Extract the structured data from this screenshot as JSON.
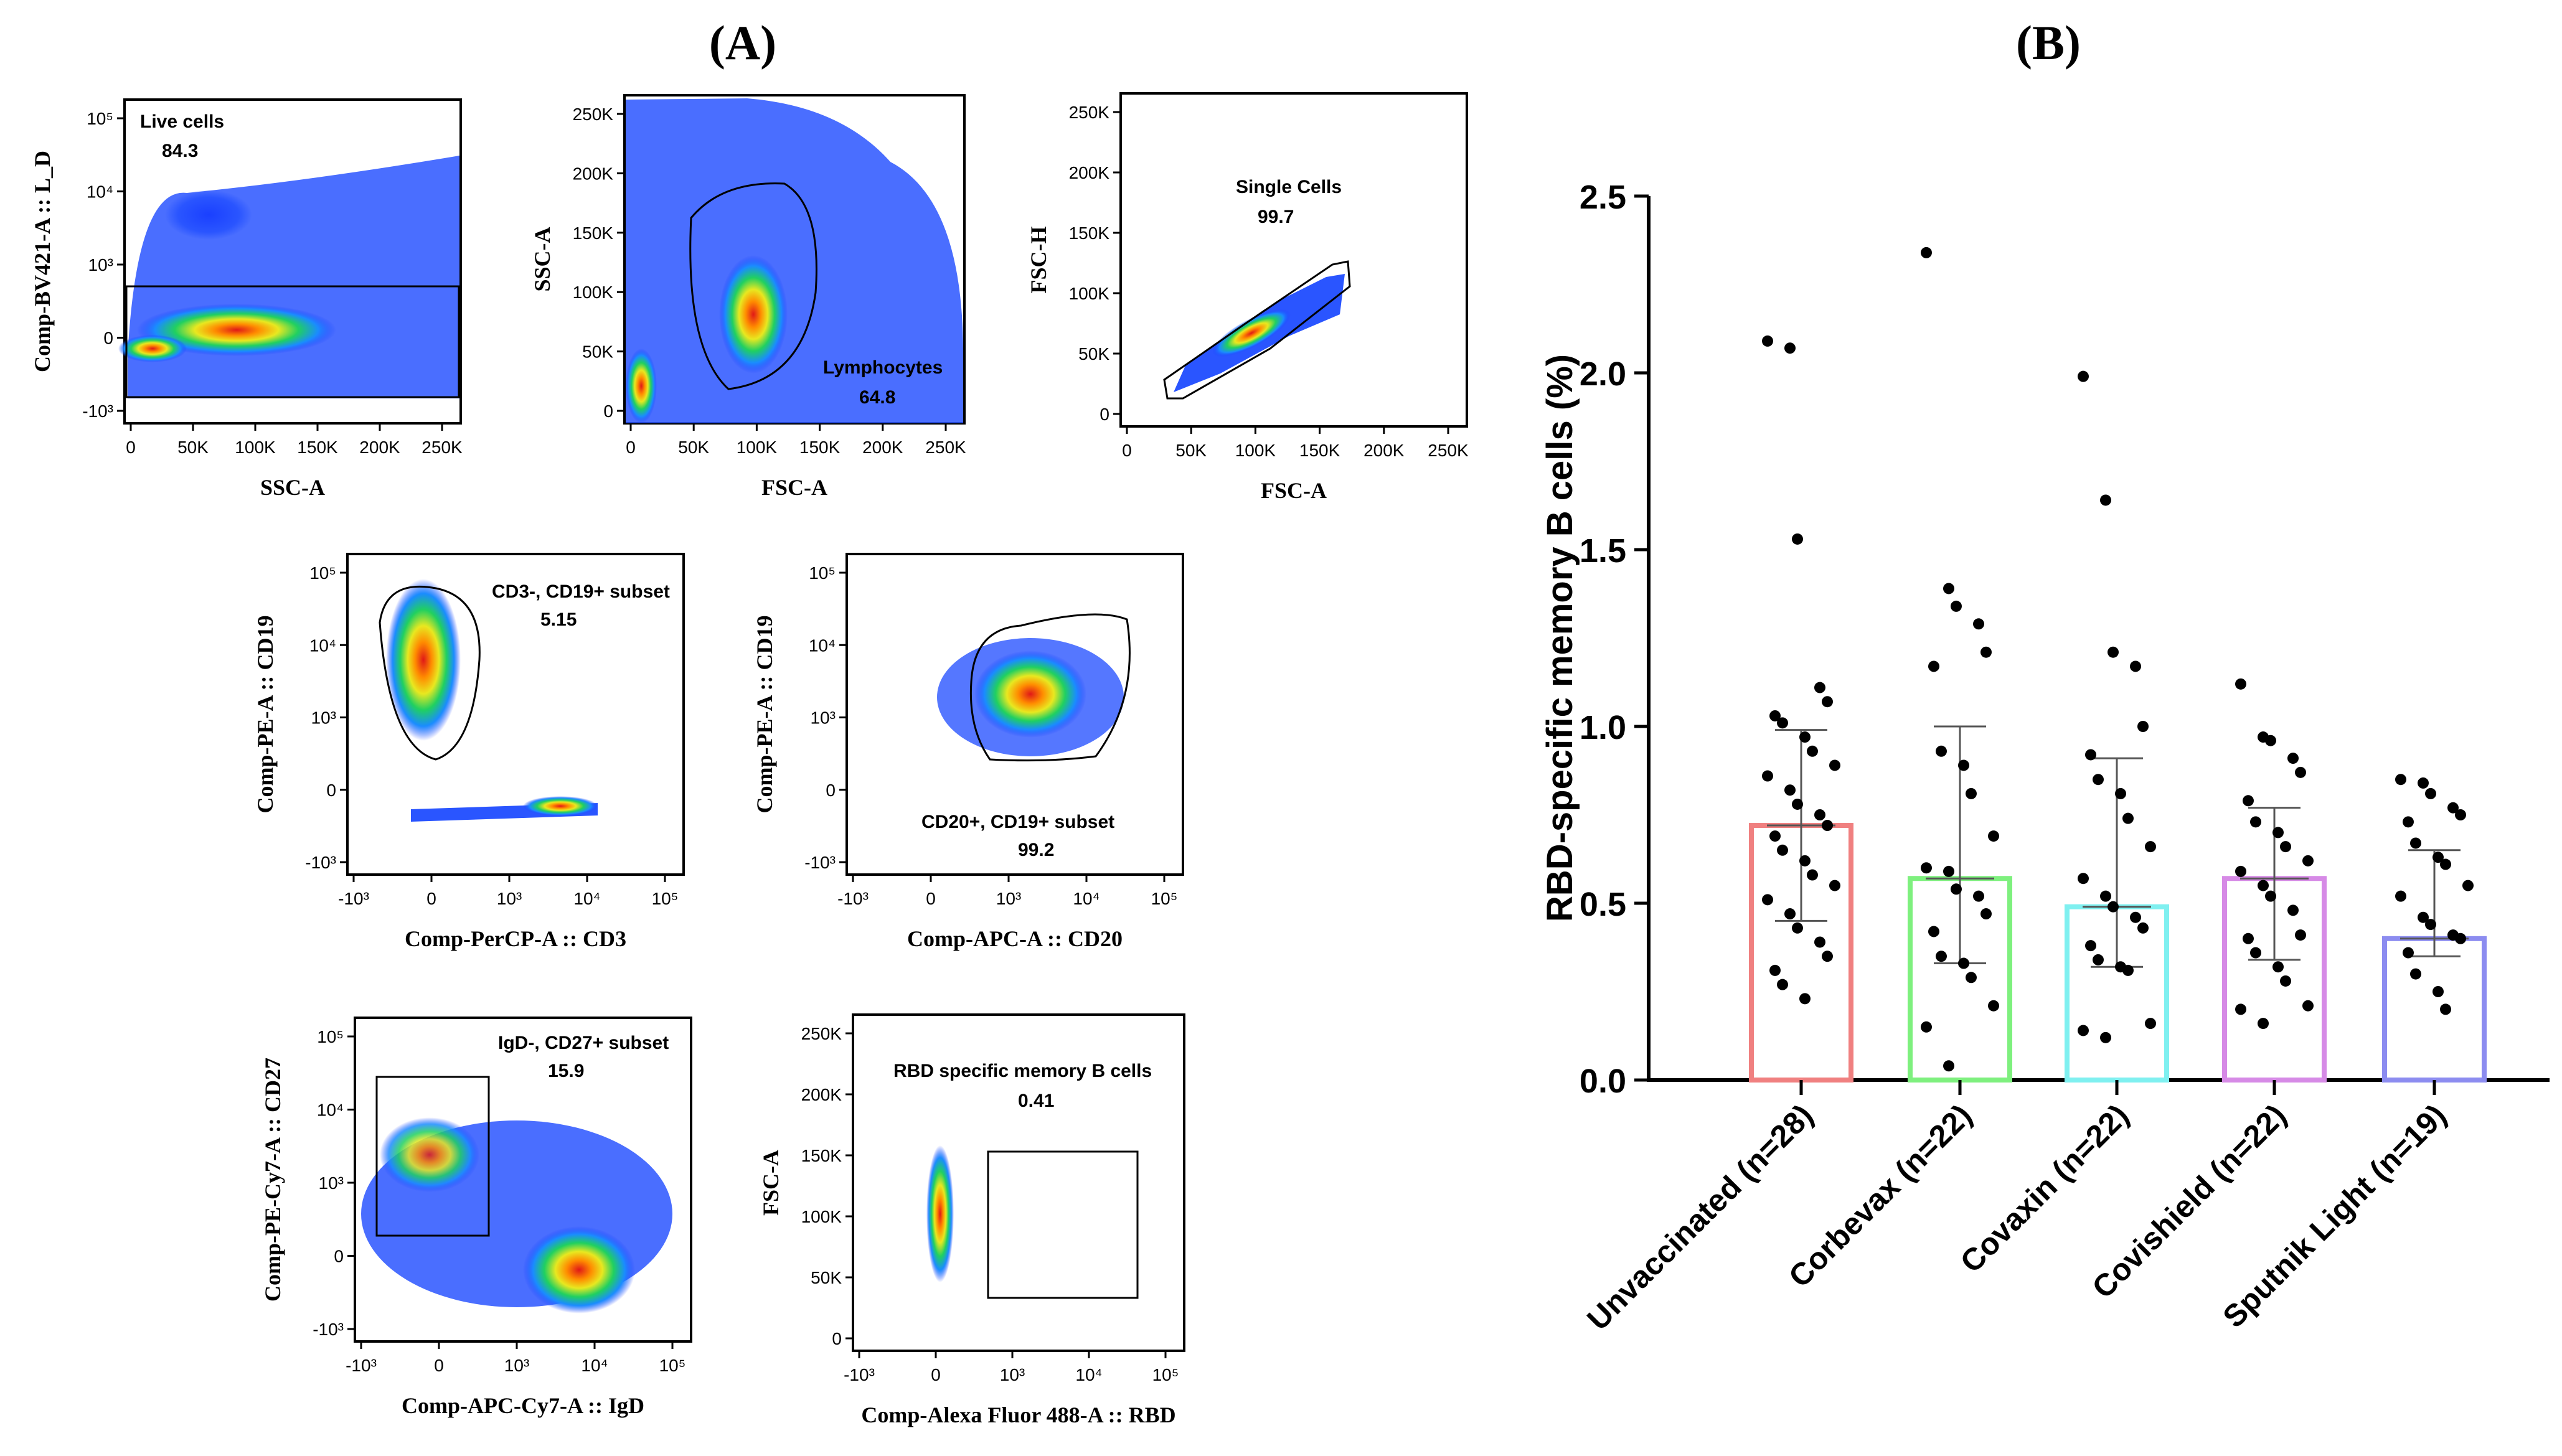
{
  "panel_a": {
    "label": "(A)",
    "plots": [
      {
        "id": "p1",
        "xlabel": "SSC-A",
        "ylabel": "Comp-BV421-A :: L_D",
        "xticks": [
          "0",
          "50K",
          "100K",
          "150K",
          "200K",
          "250K"
        ],
        "yticks": [
          "10⁵",
          "10⁴",
          "10³",
          "0",
          "-10³"
        ],
        "gate": {
          "name": "Live cells",
          "value": "84.3"
        }
      },
      {
        "id": "p2",
        "xlabel": "FSC-A",
        "ylabel": "SSC-A",
        "xticks": [
          "0",
          "50K",
          "100K",
          "150K",
          "200K",
          "250K"
        ],
        "yticks": [
          "250K",
          "200K",
          "150K",
          "100K",
          "50K",
          "0"
        ],
        "gate": {
          "name": "Lymphocytes",
          "value": "64.8"
        }
      },
      {
        "id": "p3",
        "xlabel": "FSC-A",
        "ylabel": "FSC-H",
        "xticks": [
          "0",
          "50K",
          "100K",
          "150K",
          "200K",
          "250K"
        ],
        "yticks": [
          "250K",
          "200K",
          "150K",
          "100K",
          "50K",
          "0"
        ],
        "gate": {
          "name": "Single Cells",
          "value": "99.7"
        }
      },
      {
        "id": "p4",
        "xlabel": "Comp-PerCP-A :: CD3",
        "ylabel": "Comp-PE-A :: CD19",
        "xticks": [
          "-10³",
          "0",
          "10³",
          "10⁴",
          "10⁵"
        ],
        "yticks": [
          "10⁵",
          "10⁴",
          "10³",
          "0",
          "-10³"
        ],
        "gate": {
          "name": "CD3-, CD19+ subset",
          "value": "5.15"
        }
      },
      {
        "id": "p5",
        "xlabel": "Comp-APC-A :: CD20",
        "ylabel": "Comp-PE-A :: CD19",
        "xticks": [
          "-10³",
          "0",
          "10³",
          "10⁴",
          "10⁵"
        ],
        "yticks": [
          "10⁵",
          "10⁴",
          "10³",
          "0",
          "-10³"
        ],
        "gate": {
          "name": "CD20+, CD19+ subset",
          "value": "99.2"
        }
      },
      {
        "id": "p6",
        "xlabel": "Comp-APC-Cy7-A :: IgD",
        "ylabel": "Comp-PE-Cy7-A :: CD27",
        "xticks": [
          "-10³",
          "0",
          "10³",
          "10⁴",
          "10⁵"
        ],
        "yticks": [
          "10⁵",
          "10⁴",
          "10³",
          "0",
          "-10³"
        ],
        "gate": {
          "name": "IgD-, CD27+ subset",
          "value": "15.9"
        }
      },
      {
        "id": "p7",
        "xlabel": "Comp-Alexa Fluor 488-A :: RBD",
        "ylabel": "FSC-A",
        "xticks": [
          "-10³",
          "0",
          "10³",
          "10⁴",
          "10⁵"
        ],
        "yticks": [
          "250K",
          "200K",
          "150K",
          "100K",
          "50K",
          "0"
        ],
        "gate": {
          "name": "RBD specific memory B cells",
          "value": "0.41"
        }
      }
    ]
  },
  "chart_data": {
    "type": "bar",
    "panel_label": "(B)",
    "title": "",
    "xlabel": "",
    "ylabel": "RBD-specific memory B cells (%)",
    "ylim": [
      0,
      2.5
    ],
    "yticks": [
      "0.0",
      "0.5",
      "1.0",
      "1.5",
      "2.0",
      "2.5"
    ],
    "grid": false,
    "categories": [
      "Unvaccinated (n=28)",
      "Corbevax (n=22)",
      "Covaxin (n=22)",
      "Covishield (n=22)",
      "Sputnik Light (n=19)"
    ],
    "colors": [
      "#f08080",
      "#7ef07e",
      "#7ff0f0",
      "#d68ae6",
      "#8c8cf0"
    ],
    "values": [
      0.72,
      0.57,
      0.49,
      0.57,
      0.4
    ],
    "error_low": [
      0.45,
      0.33,
      0.32,
      0.34,
      0.35
    ],
    "error_high": [
      0.99,
      1.0,
      0.91,
      0.77,
      0.65
    ],
    "points": [
      [
        2.09,
        2.07,
        1.53,
        1.11,
        1.07,
        1.03,
        1.01,
        0.97,
        0.93,
        0.89,
        0.86,
        0.82,
        0.78,
        0.75,
        0.72,
        0.69,
        0.65,
        0.62,
        0.58,
        0.55,
        0.51,
        0.47,
        0.43,
        0.39,
        0.35,
        0.31,
        0.27,
        0.23
      ],
      [
        2.34,
        1.39,
        1.34,
        1.29,
        1.21,
        1.17,
        0.93,
        0.89,
        0.81,
        0.69,
        0.6,
        0.59,
        0.54,
        0.52,
        0.47,
        0.42,
        0.35,
        0.33,
        0.29,
        0.21,
        0.15,
        0.04
      ],
      [
        1.99,
        1.64,
        1.21,
        1.17,
        1.0,
        0.92,
        0.85,
        0.81,
        0.74,
        0.66,
        0.57,
        0.52,
        0.49,
        0.46,
        0.43,
        0.38,
        0.34,
        0.32,
        0.31,
        0.16,
        0.14,
        0.12
      ],
      [
        1.12,
        0.97,
        0.96,
        0.91,
        0.87,
        0.79,
        0.73,
        0.7,
        0.66,
        0.62,
        0.59,
        0.55,
        0.52,
        0.48,
        0.41,
        0.4,
        0.36,
        0.32,
        0.28,
        0.21,
        0.2,
        0.16
      ],
      [
        0.85,
        0.84,
        0.81,
        0.77,
        0.75,
        0.73,
        0.67,
        0.63,
        0.61,
        0.55,
        0.52,
        0.46,
        0.44,
        0.41,
        0.4,
        0.36,
        0.3,
        0.25,
        0.2
      ]
    ]
  }
}
